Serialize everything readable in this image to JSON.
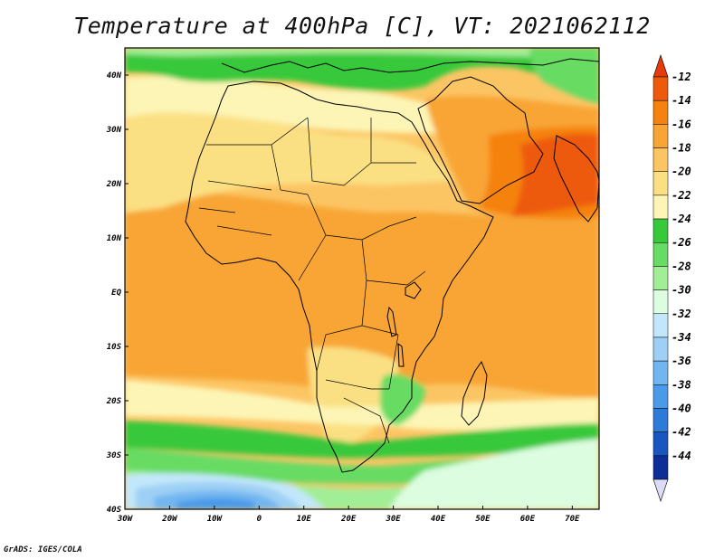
{
  "title": "Temperature at 400hPa [C], VT: 2021062112",
  "credit": "GrADS: IGES/COLA",
  "map": {
    "lon_range": [
      -30,
      76
    ],
    "lat_range": [
      -40,
      45
    ],
    "lat_ticks": [
      {
        "value": 40,
        "label": "40N"
      },
      {
        "value": 30,
        "label": "30N"
      },
      {
        "value": 20,
        "label": "20N"
      },
      {
        "value": 10,
        "label": "10N"
      },
      {
        "value": 0,
        "label": "EQ"
      },
      {
        "value": -10,
        "label": "10S"
      },
      {
        "value": -20,
        "label": "20S"
      },
      {
        "value": -30,
        "label": "30S"
      },
      {
        "value": -40,
        "label": "40S"
      }
    ],
    "lon_ticks": [
      {
        "value": -30,
        "label": "30W"
      },
      {
        "value": -20,
        "label": "20W"
      },
      {
        "value": -10,
        "label": "10W"
      },
      {
        "value": 0,
        "label": "0"
      },
      {
        "value": 10,
        "label": "10E"
      },
      {
        "value": 20,
        "label": "20E"
      },
      {
        "value": 30,
        "label": "30E"
      },
      {
        "value": 40,
        "label": "40E"
      },
      {
        "value": 50,
        "label": "50E"
      },
      {
        "value": 60,
        "label": "60E"
      },
      {
        "value": 70,
        "label": "70E"
      }
    ]
  },
  "colorbar": {
    "levels": [
      {
        "label": "-12",
        "color": "#ee5a0c"
      },
      {
        "label": "-14",
        "color": "#f5820f"
      },
      {
        "label": "-16",
        "color": "#f8a536"
      },
      {
        "label": "-18",
        "color": "#fcc564"
      },
      {
        "label": "-20",
        "color": "#fbe083"
      },
      {
        "label": "-22",
        "color": "#fdf5b5"
      },
      {
        "label": "-24",
        "color": "#37c83b"
      },
      {
        "label": "-26",
        "color": "#67db63"
      },
      {
        "label": "-28",
        "color": "#a2ee97"
      },
      {
        "label": "-30",
        "color": "#dcfde0"
      },
      {
        "label": "-32",
        "color": "#c2e7fb"
      },
      {
        "label": "-34",
        "color": "#9ed0f5"
      },
      {
        "label": "-36",
        "color": "#72b6f0"
      },
      {
        "label": "-38",
        "color": "#4a9ae8"
      },
      {
        "label": "-40",
        "color": "#2d7ad9"
      },
      {
        "label": "-42",
        "color": "#1a56c0"
      },
      {
        "label": "-44",
        "color": "#0c2e96"
      }
    ],
    "top_color": "#e53a0b",
    "bottom_color": "#dcdcf5"
  },
  "field_colors": {
    "hot": "#ee5a0c",
    "t14": "#f5820f",
    "t16": "#f8a536",
    "t18": "#fcc564",
    "t20": "#fbe083",
    "t22": "#fdf5b5",
    "g24": "#37c83b",
    "g26": "#67db63",
    "g28": "#a2ee97",
    "c30": "#dcfde0",
    "c32": "#c2e7fb",
    "c34": "#9ed0f5",
    "c36": "#72b6f0",
    "c38": "#4a9ae8",
    "c40": "#2d7ad9"
  }
}
